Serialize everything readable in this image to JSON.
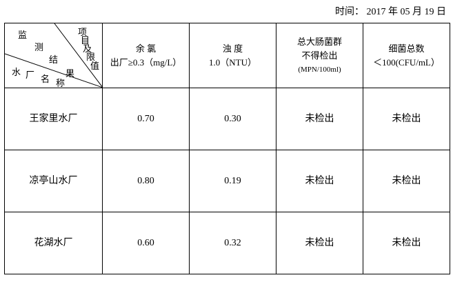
{
  "date": "时间： 2017 年 05 月 19 日",
  "corner": {
    "top_right": [
      "项",
      "目",
      "及",
      "限",
      "值"
    ],
    "middle": [
      "监",
      "测",
      "结",
      "果"
    ],
    "bottom": [
      "水",
      "厂",
      "名",
      "称"
    ]
  },
  "columns": [
    {
      "line1": "余 氯",
      "line2": "出厂≥0.3（mg/L）"
    },
    {
      "line1": "浊 度",
      "line2": "1.0（NTU）"
    },
    {
      "line1": "总大肠菌群",
      "line2": "不得检出",
      "line3": "(MPN/100ml)"
    },
    {
      "line1": "细菌总数",
      "line2": "＜100(CFU/mL）"
    }
  ],
  "rows": [
    {
      "name": "王家里水厂",
      "chlorine": "0.70",
      "turbidity": "0.30",
      "coliform": "未检出",
      "bacteria": "未检出"
    },
    {
      "name": "凉亭山水厂",
      "chlorine": "0.80",
      "turbidity": "0.19",
      "coliform": "未检出",
      "bacteria": "未检出"
    },
    {
      "name": "花湖水厂",
      "chlorine": "0.60",
      "turbidity": "0.32",
      "coliform": "未检出",
      "bacteria": "未检出"
    }
  ]
}
